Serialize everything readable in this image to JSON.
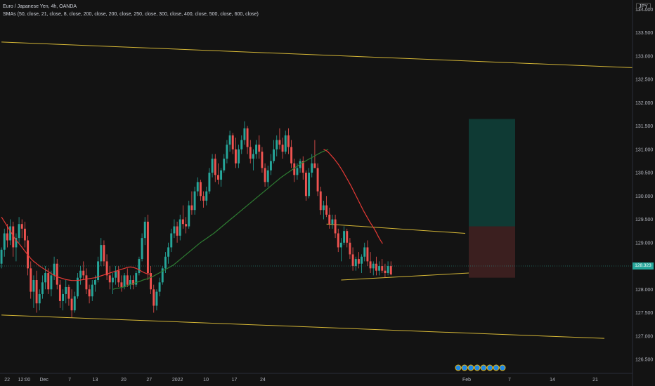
{
  "legend": {
    "title": "Euro / Japanese Yen, 4h, OANDA",
    "indicator": "SMAs (50, close, 21, close, 8, close, 200, close, 200, close, 250, close, 300, close, 400, close, 500, close, 600, close)"
  },
  "currency_badge": "JPY",
  "last_price_label": "128.323",
  "colors": {
    "background": "#131313",
    "up": "#26a69a",
    "down": "#ef5350",
    "sma_red": "#e53935",
    "sma_green": "#2e7d32",
    "trendline": "#d4b636",
    "target_zone": "#0f3a34",
    "stop_zone": "#3b1f1f"
  },
  "chart_data": {
    "type": "candlestick",
    "title": "Euro / Japanese Yen, 4h, OANDA",
    "y_axis": {
      "ylim": [
        126.2,
        134.2
      ],
      "ticks": [
        "134.000",
        "133.500",
        "133.000",
        "132.500",
        "132.000",
        "131.500",
        "131.000",
        "130.500",
        "130.000",
        "129.500",
        "129.000",
        "128.500",
        "128.000",
        "127.500",
        "127.000",
        "126.500"
      ]
    },
    "x_axis": {
      "ticks": [
        "22",
        "12:00",
        "Dec",
        "7",
        "13",
        "20",
        "27",
        "2022",
        "10",
        "17",
        "24",
        "Feb",
        "7",
        "14",
        "21"
      ],
      "candle_count": 156
    },
    "candles": [
      [
        128.55,
        128.9,
        128.45,
        128.85
      ],
      [
        128.85,
        129.3,
        128.7,
        129.2
      ],
      [
        129.2,
        129.4,
        128.9,
        129.05
      ],
      [
        129.05,
        129.5,
        128.95,
        129.35
      ],
      [
        129.35,
        129.45,
        128.7,
        128.9
      ],
      [
        128.9,
        129.2,
        128.6,
        129.1
      ],
      [
        129.1,
        129.55,
        129.0,
        129.4
      ],
      [
        129.4,
        129.5,
        129.1,
        129.3
      ],
      [
        129.3,
        129.45,
        128.9,
        129.05
      ],
      [
        129.05,
        129.15,
        128.3,
        128.45
      ],
      [
        128.45,
        128.6,
        127.8,
        127.95
      ],
      [
        127.95,
        128.3,
        127.6,
        128.2
      ],
      [
        128.2,
        128.4,
        127.5,
        127.7
      ],
      [
        127.7,
        128.0,
        127.55,
        127.9
      ],
      [
        127.9,
        128.3,
        127.8,
        128.15
      ],
      [
        128.15,
        128.5,
        128.0,
        128.35
      ],
      [
        128.35,
        128.45,
        127.9,
        128.0
      ],
      [
        128.0,
        128.4,
        127.85,
        128.3
      ],
      [
        128.3,
        128.7,
        128.2,
        128.55
      ],
      [
        128.55,
        128.65,
        128.0,
        128.1
      ],
      [
        128.1,
        128.2,
        127.6,
        127.75
      ],
      [
        127.75,
        128.0,
        127.55,
        127.9
      ],
      [
        127.9,
        128.2,
        127.7,
        128.05
      ],
      [
        128.05,
        128.1,
        127.65,
        127.8
      ],
      [
        127.8,
        128.0,
        127.4,
        127.55
      ],
      [
        127.55,
        127.95,
        127.5,
        127.85
      ],
      [
        127.85,
        128.35,
        127.8,
        128.25
      ],
      [
        128.25,
        128.5,
        128.1,
        128.4
      ],
      [
        128.4,
        128.6,
        128.2,
        128.3
      ],
      [
        128.3,
        128.45,
        127.9,
        128.0
      ],
      [
        128.0,
        128.1,
        127.7,
        127.85
      ],
      [
        127.85,
        128.2,
        127.75,
        128.1
      ],
      [
        128.1,
        128.3,
        127.95,
        128.2
      ],
      [
        128.2,
        128.7,
        128.15,
        128.6
      ],
      [
        128.6,
        129.1,
        128.5,
        128.95
      ],
      [
        128.95,
        129.05,
        128.5,
        128.6
      ],
      [
        128.6,
        128.75,
        128.2,
        128.3
      ],
      [
        128.3,
        128.5,
        128.0,
        128.15
      ],
      [
        128.15,
        128.35,
        127.9,
        128.25
      ],
      [
        128.25,
        128.5,
        128.1,
        128.4
      ],
      [
        128.4,
        128.5,
        128.05,
        128.15
      ],
      [
        128.15,
        128.3,
        127.95,
        128.05
      ],
      [
        128.05,
        128.35,
        128.0,
        128.3
      ],
      [
        128.3,
        128.45,
        128.05,
        128.1
      ],
      [
        128.1,
        128.3,
        128.0,
        128.2
      ],
      [
        128.2,
        128.3,
        128.0,
        128.1
      ],
      [
        128.1,
        128.4,
        128.05,
        128.35
      ],
      [
        128.35,
        128.7,
        128.3,
        128.65
      ],
      [
        128.65,
        129.2,
        128.6,
        129.1
      ],
      [
        129.1,
        129.55,
        128.95,
        129.45
      ],
      [
        129.45,
        129.6,
        128.2,
        128.35
      ],
      [
        128.35,
        128.5,
        127.9,
        128.0
      ],
      [
        128.0,
        128.1,
        127.5,
        127.65
      ],
      [
        127.65,
        128.0,
        127.55,
        127.95
      ],
      [
        127.95,
        128.25,
        127.85,
        128.15
      ],
      [
        128.15,
        128.5,
        128.1,
        128.45
      ],
      [
        128.45,
        128.8,
        128.35,
        128.7
      ],
      [
        128.7,
        129.0,
        128.55,
        128.9
      ],
      [
        128.9,
        129.3,
        128.8,
        129.2
      ],
      [
        129.2,
        129.5,
        129.1,
        129.35
      ],
      [
        129.35,
        129.45,
        129.0,
        129.15
      ],
      [
        129.15,
        129.6,
        129.05,
        129.5
      ],
      [
        129.5,
        129.8,
        129.3,
        129.4
      ],
      [
        129.4,
        129.55,
        129.2,
        129.35
      ],
      [
        129.35,
        129.9,
        129.3,
        129.8
      ],
      [
        129.8,
        130.1,
        129.6,
        129.7
      ],
      [
        129.7,
        130.2,
        129.6,
        130.1
      ],
      [
        130.1,
        130.4,
        130.0,
        130.3
      ],
      [
        130.3,
        130.35,
        129.9,
        130.0
      ],
      [
        130.0,
        130.1,
        129.75,
        129.9
      ],
      [
        129.9,
        130.2,
        129.8,
        130.1
      ],
      [
        130.1,
        130.6,
        130.05,
        130.5
      ],
      [
        130.5,
        130.9,
        130.4,
        130.8
      ],
      [
        130.8,
        130.9,
        130.3,
        130.45
      ],
      [
        130.45,
        130.7,
        130.25,
        130.35
      ],
      [
        130.35,
        130.6,
        130.2,
        130.55
      ],
      [
        130.55,
        130.9,
        130.5,
        130.8
      ],
      [
        130.8,
        131.2,
        130.7,
        131.1
      ],
      [
        131.1,
        131.4,
        130.95,
        131.3
      ],
      [
        131.3,
        131.35,
        130.9,
        131.0
      ],
      [
        131.0,
        131.25,
        130.6,
        130.7
      ],
      [
        130.7,
        131.1,
        130.6,
        131.0
      ],
      [
        131.0,
        131.3,
        130.9,
        131.2
      ],
      [
        131.2,
        131.6,
        131.1,
        131.45
      ],
      [
        131.45,
        131.5,
        130.9,
        131.05
      ],
      [
        131.05,
        131.2,
        130.7,
        130.8
      ],
      [
        130.8,
        131.0,
        130.55,
        130.9
      ],
      [
        130.9,
        131.2,
        130.8,
        131.1
      ],
      [
        131.1,
        131.3,
        130.8,
        130.95
      ],
      [
        130.95,
        131.05,
        130.5,
        130.6
      ],
      [
        130.6,
        130.7,
        130.2,
        130.3
      ],
      [
        130.3,
        130.65,
        130.2,
        130.55
      ],
      [
        130.55,
        130.9,
        130.45,
        130.75
      ],
      [
        130.75,
        131.2,
        130.7,
        131.0
      ],
      [
        131.0,
        131.3,
        130.85,
        131.2
      ],
      [
        131.2,
        131.45,
        131.0,
        131.1
      ],
      [
        131.1,
        131.25,
        130.8,
        130.95
      ],
      [
        130.95,
        131.4,
        130.9,
        131.3
      ],
      [
        131.3,
        131.45,
        130.9,
        131.05
      ],
      [
        131.05,
        131.2,
        130.6,
        130.7
      ],
      [
        130.7,
        130.8,
        130.3,
        130.45
      ],
      [
        130.45,
        130.7,
        130.35,
        130.6
      ],
      [
        130.6,
        130.8,
        130.5,
        130.75
      ],
      [
        130.75,
        130.85,
        130.35,
        130.5
      ],
      [
        130.5,
        130.55,
        129.9,
        130.0
      ],
      [
        130.0,
        130.6,
        129.95,
        130.5
      ],
      [
        130.5,
        130.9,
        130.4,
        130.7
      ],
      [
        130.7,
        131.2,
        130.6,
        130.6
      ],
      [
        130.6,
        130.7,
        130.0,
        130.1
      ],
      [
        130.1,
        130.2,
        129.6,
        129.7
      ],
      [
        129.7,
        129.9,
        129.5,
        129.8
      ],
      [
        129.8,
        130.0,
        129.55,
        129.6
      ],
      [
        129.6,
        129.75,
        129.3,
        129.4
      ],
      [
        129.4,
        129.6,
        129.3,
        129.5
      ],
      [
        129.5,
        129.6,
        129.1,
        129.2
      ],
      [
        129.2,
        129.3,
        128.8,
        128.9
      ],
      [
        128.9,
        129.1,
        128.6,
        129.0
      ],
      [
        129.0,
        129.35,
        128.95,
        129.25
      ],
      [
        129.25,
        129.3,
        128.9,
        129.0
      ],
      [
        129.0,
        129.1,
        128.65,
        128.75
      ],
      [
        128.75,
        128.9,
        128.4,
        128.5
      ],
      [
        128.5,
        128.7,
        128.4,
        128.65
      ],
      [
        128.65,
        128.8,
        128.45,
        128.55
      ],
      [
        128.55,
        128.75,
        128.35,
        128.7
      ],
      [
        128.7,
        129.0,
        128.6,
        128.9
      ],
      [
        128.9,
        129.05,
        128.5,
        128.6
      ],
      [
        128.6,
        128.8,
        128.35,
        128.45
      ],
      [
        128.45,
        128.6,
        128.3,
        128.55
      ],
      [
        128.55,
        128.7,
        128.3,
        128.4
      ],
      [
        128.4,
        128.6,
        128.3,
        128.5
      ],
      [
        128.5,
        128.65,
        128.35,
        128.4
      ],
      [
        128.4,
        128.55,
        128.25,
        128.35
      ],
      [
        128.35,
        128.6,
        128.3,
        128.5
      ],
      [
        128.5,
        128.6,
        128.3,
        128.32
      ]
    ],
    "sma_red": [
      129.55,
      129.45,
      129.35,
      129.25,
      129.15,
      129.05,
      128.98,
      128.9,
      128.82,
      128.74,
      128.66,
      128.6,
      128.55,
      128.5,
      128.46,
      128.42,
      128.38,
      128.34,
      128.3,
      128.27,
      128.25,
      128.23,
      128.21,
      128.2,
      128.19,
      128.19,
      128.19,
      128.2,
      128.21,
      128.22,
      128.23,
      128.24,
      128.25,
      128.27,
      128.29,
      128.31,
      128.33,
      128.35,
      128.37,
      128.39,
      128.41,
      128.43,
      128.45,
      128.47,
      128.48,
      128.47,
      128.45,
      128.42,
      128.38,
      128.35,
      128.33,
      128.33
    ],
    "sma_green": [
      128.0,
      128.02,
      128.03,
      128.05,
      128.07,
      128.1,
      128.12,
      128.15,
      128.17,
      128.2,
      128.22,
      128.25,
      128.28,
      128.32,
      128.36,
      128.4,
      128.44,
      128.48,
      128.52,
      128.58,
      128.64,
      128.7,
      128.76,
      128.82,
      128.88,
      128.94,
      129.0,
      129.05,
      129.1,
      129.15,
      129.2,
      129.26,
      129.32,
      129.38,
      129.44,
      129.5,
      129.56,
      129.62,
      129.68,
      129.74,
      129.8,
      129.86,
      129.92,
      129.98,
      130.04,
      130.1,
      130.16,
      130.22,
      130.28,
      130.34,
      130.4,
      130.45,
      130.5,
      130.55,
      130.6,
      130.65,
      130.7,
      130.74,
      130.78,
      130.82,
      130.86,
      130.9,
      130.94,
      130.97,
      131.0
    ],
    "sma_red_late": [
      131.0,
      130.98,
      130.95,
      130.9,
      130.85,
      130.8,
      130.74,
      130.68,
      130.61,
      130.54,
      130.46,
      130.38,
      130.3,
      130.22,
      130.13,
      130.04,
      129.95,
      129.86,
      129.77,
      129.68,
      129.6,
      129.52,
      129.44,
      129.37,
      129.3,
      129.22,
      129.13,
      129.05,
      128.98
    ]
  },
  "annotations": {
    "channel_upper": [
      [
        0,
        133.3
      ],
      [
        155,
        132.75
      ]
    ],
    "channel_lower": [
      [
        0,
        127.45
      ],
      [
        155,
        126.95
      ]
    ],
    "wedge_upper": [
      [
        111,
        129.4
      ],
      [
        129,
        129.2
      ]
    ],
    "wedge_lower": [
      [
        116,
        128.2
      ],
      [
        130,
        128.35
      ]
    ],
    "position": {
      "entry": 129.35,
      "target": 131.65,
      "stop": 128.25
    }
  }
}
